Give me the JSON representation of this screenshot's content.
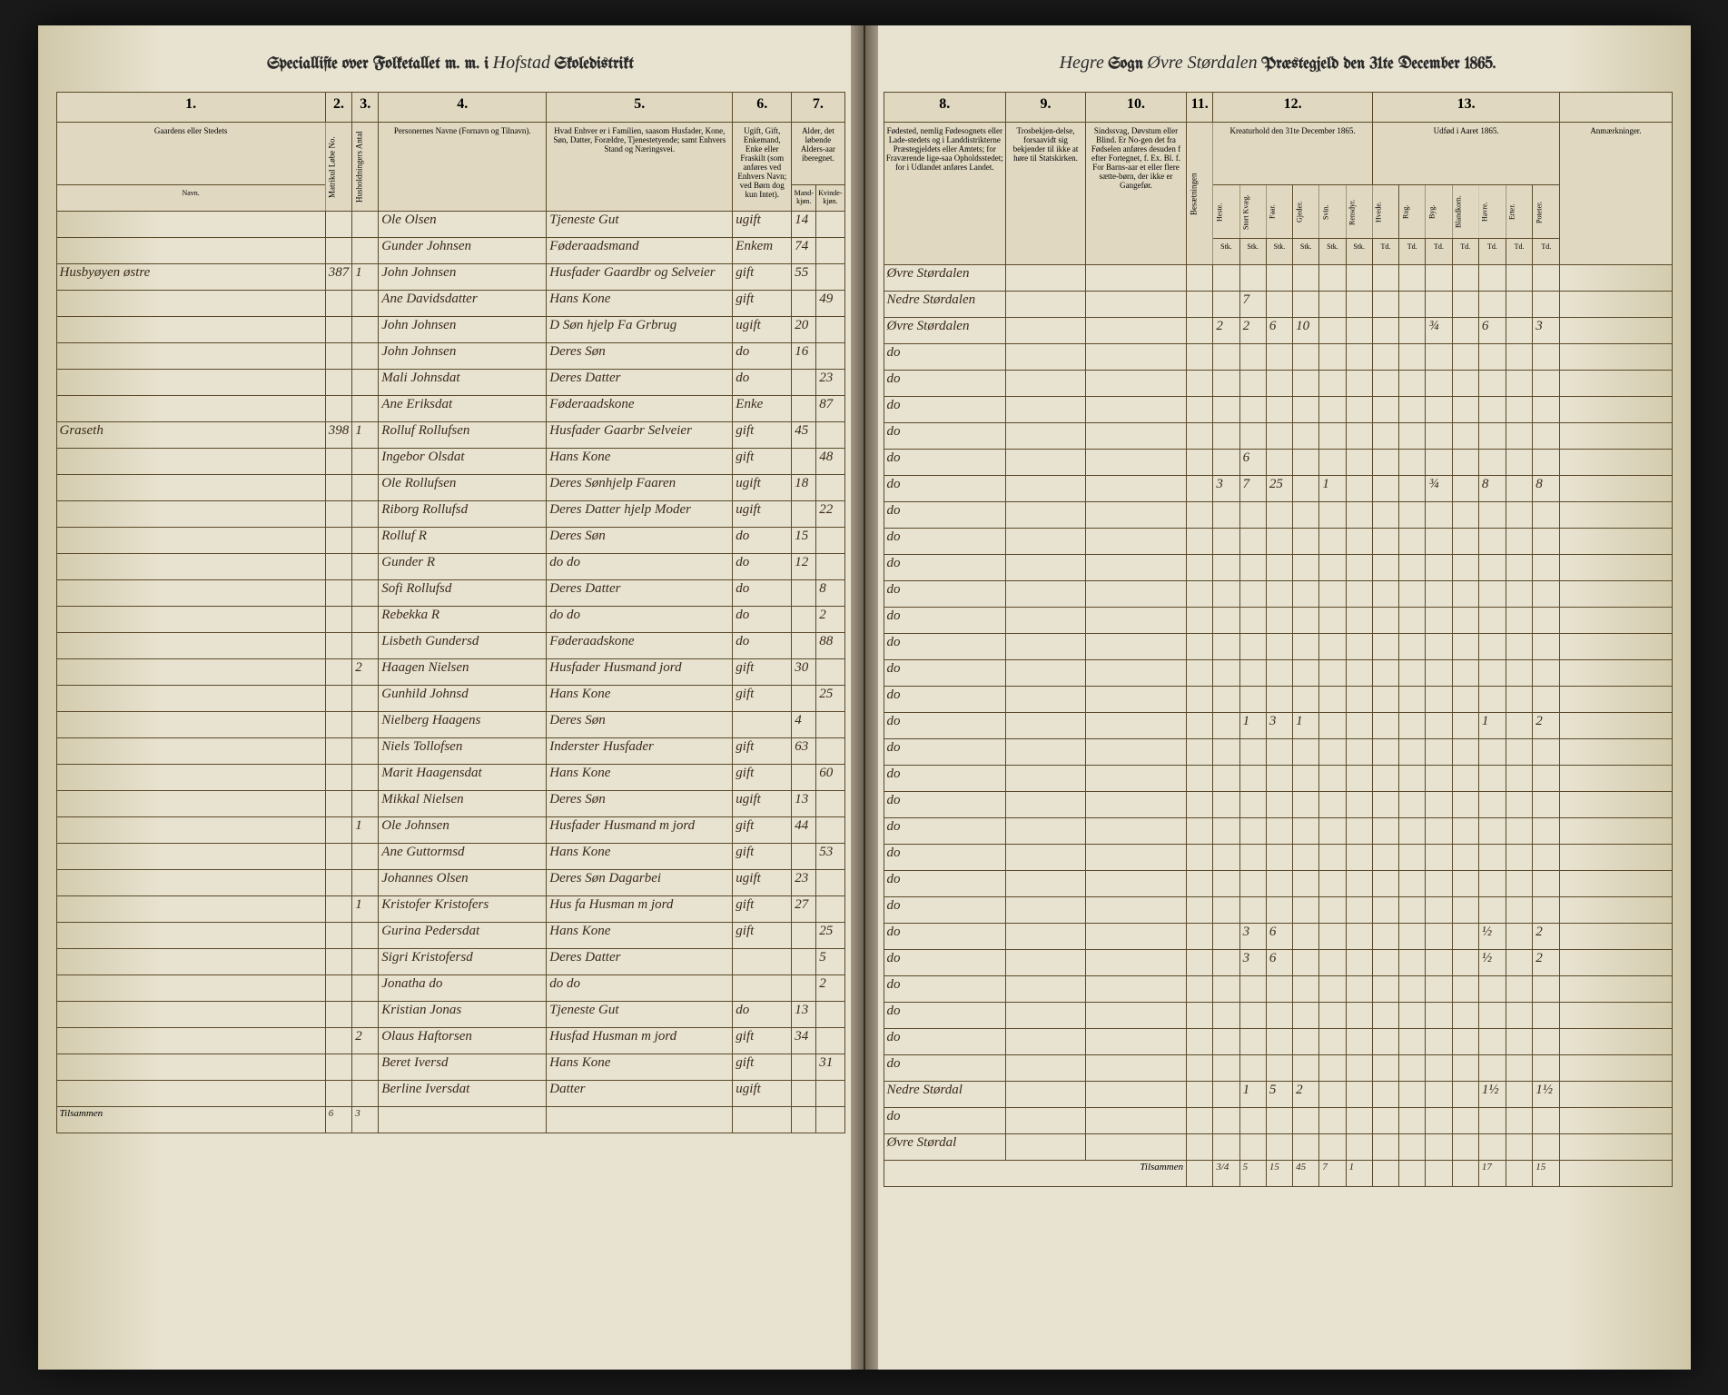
{
  "header": {
    "left_prefix": "Speciallifte over Folketallet m. m. i",
    "district_script": "Hofstad",
    "left_suffix": "Skoledistrikt",
    "right_sogn_script": "Hegre",
    "right_sogn_label": "Sogn",
    "right_prest_script": "Øvre Størdalen",
    "right_suffix": "Præstegjeld den 31te December 1865."
  },
  "columns_left": {
    "nums": [
      "1.",
      "2.",
      "3.",
      "4.",
      "5.",
      "6.",
      "7."
    ],
    "c1": "Gaardens eller Stedets",
    "c1_sub": "Navn.",
    "c2": "Matrikul Løbe No.",
    "c3": "Husholdningers Antal",
    "c4": "Personernes Navne (Fornavn og Tilnavn).",
    "c5": "Hvad Enhver er i Familien, saasom Husfader, Kone, Søn, Datter, Forældre, Tjenestetyende; samt Enhvers Stand og Næringsvei.",
    "c6": "Ugift, Gift, Enkemand, Enke eller Fraskilt (som anføres ved Enhvers Navn; ved Børn dog kun Intet).",
    "c7_a": "Alder, det løbende Alders-aar iberegnet.",
    "c7_m": "Mand-kjøn.",
    "c7_k": "Kvinde-kjøn."
  },
  "columns_right": {
    "nums": [
      "8.",
      "9.",
      "10.",
      "11.",
      "12.",
      "13."
    ],
    "c8": "Fødested, nemlig Fødesognets eller Lade-stedets og i Landdistrikterne Præstegjeldets eller Amtets; for Fraværende lige-saa Opholdsstedet; for i Udlandet anføres Landet.",
    "c9": "Trosbekjen-delse, forsaavidt sig bekjender til ikke at høre til Statskirken.",
    "c10": "Sindssvag, Døvstum eller Blind. Er No-gen det fra Fødselen anføres desuden f efter Fortegnet, f. Ex. Bl. f. For Barns-aar et eller flere sætte-børn, der ikke er Gangefør.",
    "c11_a": "Besætningen",
    "c11_b": "Kreaturhold den 31te December 1865.",
    "c13": "Udfød i Aaret 1865.",
    "c14": "Anmærkninger.",
    "livestock": [
      "Heste.",
      "Stort Kvæg.",
      "Faar.",
      "Gjeder.",
      "Svin.",
      "Rensdyr."
    ],
    "crops": [
      "Hvede.",
      "Rug.",
      "Byg.",
      "Blandkorn.",
      "Havre.",
      "Erter.",
      "Poteter."
    ],
    "units": [
      "Stk.",
      "Stk.",
      "Stk.",
      "Stk.",
      "Stk.",
      "Stk.",
      "Td.",
      "Td.",
      "Td.",
      "Td.",
      "Td.",
      "Td.",
      "Td."
    ]
  },
  "rows": [
    {
      "farm": "",
      "mn": "",
      "hh": "",
      "name": "Ole Olsen",
      "role": "Tjeneste Gut",
      "status": "ugift",
      "age_m": "14",
      "age_k": "",
      "birthplace": "Øvre Størdalen",
      "livestock": [
        "",
        "",
        "",
        "",
        "",
        ""
      ],
      "crops": [
        "",
        "",
        "",
        "",
        "",
        "",
        ""
      ]
    },
    {
      "farm": "",
      "mn": "",
      "hh": "",
      "name": "Gunder Johnsen",
      "role": "Føderaadsmand",
      "status": "Enkem",
      "age_m": "74",
      "age_k": "",
      "birthplace": "Nedre Størdalen",
      "livestock": [
        "",
        "7",
        "",
        "",
        "",
        ""
      ],
      "crops": [
        "",
        "",
        "",
        "",
        "",
        "",
        ""
      ]
    },
    {
      "farm": "Husbyøyen østre",
      "mn": "387",
      "hh": "1",
      "name": "John Johnsen",
      "role": "Husfader Gaardbr og Selveier",
      "status": "gift",
      "age_m": "55",
      "age_k": "",
      "birthplace": "Øvre Størdalen",
      "livestock": [
        "2",
        "2",
        "6",
        "10",
        "",
        ""
      ],
      "crops": [
        "",
        "",
        "¾",
        "",
        "6",
        "",
        "3"
      ]
    },
    {
      "farm": "",
      "mn": "",
      "hh": "",
      "name": "Ane Davidsdatter",
      "role": "Hans Kone",
      "status": "gift",
      "age_m": "",
      "age_k": "49",
      "birthplace": "do",
      "livestock": [
        "",
        "",
        "",
        "",
        "",
        ""
      ],
      "crops": [
        "",
        "",
        "",
        "",
        "",
        "",
        ""
      ]
    },
    {
      "farm": "",
      "mn": "",
      "hh": "",
      "name": "John Johnsen",
      "role": "D Søn hjelp Fa Grbrug",
      "status": "ugift",
      "age_m": "20",
      "age_k": "",
      "birthplace": "do",
      "livestock": [
        "",
        "",
        "",
        "",
        "",
        ""
      ],
      "crops": [
        "",
        "",
        "",
        "",
        "",
        "",
        ""
      ]
    },
    {
      "farm": "",
      "mn": "",
      "hh": "",
      "name": "John Johnsen",
      "role": "Deres Søn",
      "status": "do",
      "age_m": "16",
      "age_k": "",
      "birthplace": "do",
      "livestock": [
        "",
        "",
        "",
        "",
        "",
        ""
      ],
      "crops": [
        "",
        "",
        "",
        "",
        "",
        "",
        ""
      ]
    },
    {
      "farm": "",
      "mn": "",
      "hh": "",
      "name": "Mali Johnsdat",
      "role": "Deres Datter",
      "status": "do",
      "age_m": "",
      "age_k": "23",
      "birthplace": "do",
      "livestock": [
        "",
        "",
        "",
        "",
        "",
        ""
      ],
      "crops": [
        "",
        "",
        "",
        "",
        "",
        "",
        ""
      ]
    },
    {
      "farm": "",
      "mn": "",
      "hh": "",
      "name": "Ane Eriksdat",
      "role": "Føderaadskone",
      "status": "Enke",
      "age_m": "",
      "age_k": "87",
      "birthplace": "do",
      "livestock": [
        "",
        "6",
        "",
        "",
        "",
        ""
      ],
      "crops": [
        "",
        "",
        "",
        "",
        "",
        "",
        ""
      ]
    },
    {
      "farm": "Graseth",
      "mn": "398",
      "hh": "1",
      "name": "Rolluf Rollufsen",
      "role": "Husfader Gaarbr Selveier",
      "status": "gift",
      "age_m": "45",
      "age_k": "",
      "birthplace": "do",
      "livestock": [
        "3",
        "7",
        "25",
        "",
        "1",
        ""
      ],
      "crops": [
        "",
        "",
        "¾",
        "",
        "8",
        "",
        "8"
      ]
    },
    {
      "farm": "",
      "mn": "",
      "hh": "",
      "name": "Ingebor Olsdat",
      "role": "Hans Kone",
      "status": "gift",
      "age_m": "",
      "age_k": "48",
      "birthplace": "do",
      "livestock": [
        "",
        "",
        "",
        "",
        "",
        ""
      ],
      "crops": [
        "",
        "",
        "",
        "",
        "",
        "",
        ""
      ]
    },
    {
      "farm": "",
      "mn": "",
      "hh": "",
      "name": "Ole Rollufsen",
      "role": "Deres Sønhjelp Faaren",
      "status": "ugift",
      "age_m": "18",
      "age_k": "",
      "birthplace": "do",
      "livestock": [
        "",
        "",
        "",
        "",
        "",
        ""
      ],
      "crops": [
        "",
        "",
        "",
        "",
        "",
        "",
        ""
      ]
    },
    {
      "farm": "",
      "mn": "",
      "hh": "",
      "name": "Riborg Rollufsd",
      "role": "Deres Datter hjelp Moder",
      "status": "ugift",
      "age_m": "",
      "age_k": "22",
      "birthplace": "do",
      "livestock": [
        "",
        "",
        "",
        "",
        "",
        ""
      ],
      "crops": [
        "",
        "",
        "",
        "",
        "",
        "",
        ""
      ]
    },
    {
      "farm": "",
      "mn": "",
      "hh": "",
      "name": "Rolluf R",
      "role": "Deres Søn",
      "status": "do",
      "age_m": "15",
      "age_k": "",
      "birthplace": "do",
      "livestock": [
        "",
        "",
        "",
        "",
        "",
        ""
      ],
      "crops": [
        "",
        "",
        "",
        "",
        "",
        "",
        ""
      ]
    },
    {
      "farm": "",
      "mn": "",
      "hh": "",
      "name": "Gunder R",
      "role": "do do",
      "status": "do",
      "age_m": "12",
      "age_k": "",
      "birthplace": "do",
      "livestock": [
        "",
        "",
        "",
        "",
        "",
        ""
      ],
      "crops": [
        "",
        "",
        "",
        "",
        "",
        "",
        ""
      ]
    },
    {
      "farm": "",
      "mn": "",
      "hh": "",
      "name": "Sofi Rollufsd",
      "role": "Deres Datter",
      "status": "do",
      "age_m": "",
      "age_k": "8",
      "birthplace": "do",
      "livestock": [
        "",
        "",
        "",
        "",
        "",
        ""
      ],
      "crops": [
        "",
        "",
        "",
        "",
        "",
        "",
        ""
      ]
    },
    {
      "farm": "",
      "mn": "",
      "hh": "",
      "name": "Rebekka R",
      "role": "do do",
      "status": "do",
      "age_m": "",
      "age_k": "2",
      "birthplace": "do",
      "livestock": [
        "",
        "",
        "",
        "",
        "",
        ""
      ],
      "crops": [
        "",
        "",
        "",
        "",
        "",
        "",
        ""
      ]
    },
    {
      "farm": "",
      "mn": "",
      "hh": "",
      "name": "Lisbeth Gundersd",
      "role": "Føderaadskone",
      "status": "do",
      "age_m": "",
      "age_k": "88",
      "birthplace": "do",
      "livestock": [
        "",
        "",
        "",
        "",
        "",
        ""
      ],
      "crops": [
        "",
        "",
        "",
        "",
        "",
        "",
        ""
      ]
    },
    {
      "farm": "",
      "mn": "",
      "hh": "2",
      "name": "Haagen Nielsen",
      "role": "Husfader Husmand jord",
      "status": "gift",
      "age_m": "30",
      "age_k": "",
      "birthplace": "do",
      "livestock": [
        "",
        "1",
        "3",
        "1",
        "",
        ""
      ],
      "crops": [
        "",
        "",
        "",
        "",
        "1",
        "",
        "2"
      ]
    },
    {
      "farm": "",
      "mn": "",
      "hh": "",
      "name": "Gunhild Johnsd",
      "role": "Hans Kone",
      "status": "gift",
      "age_m": "",
      "age_k": "25",
      "birthplace": "do",
      "livestock": [
        "",
        "",
        "",
        "",
        "",
        ""
      ],
      "crops": [
        "",
        "",
        "",
        "",
        "",
        "",
        ""
      ]
    },
    {
      "farm": "",
      "mn": "",
      "hh": "",
      "name": "Nielberg Haagens",
      "role": "Deres Søn",
      "status": "",
      "age_m": "4",
      "age_k": "",
      "birthplace": "do",
      "livestock": [
        "",
        "",
        "",
        "",
        "",
        ""
      ],
      "crops": [
        "",
        "",
        "",
        "",
        "",
        "",
        ""
      ]
    },
    {
      "farm": "",
      "mn": "",
      "hh": "",
      "name": "Niels Tollofsen",
      "role": "Inderster Husfader",
      "status": "gift",
      "age_m": "63",
      "age_k": "",
      "birthplace": "do",
      "livestock": [
        "",
        "",
        "",
        "",
        "",
        ""
      ],
      "crops": [
        "",
        "",
        "",
        "",
        "",
        "",
        ""
      ]
    },
    {
      "farm": "",
      "mn": "",
      "hh": "",
      "name": "Marit Haagensdat",
      "role": "Hans Kone",
      "status": "gift",
      "age_m": "",
      "age_k": "60",
      "birthplace": "do",
      "livestock": [
        "",
        "",
        "",
        "",
        "",
        ""
      ],
      "crops": [
        "",
        "",
        "",
        "",
        "",
        "",
        ""
      ]
    },
    {
      "farm": "",
      "mn": "",
      "hh": "",
      "name": "Mikkal Nielsen",
      "role": "Deres Søn",
      "status": "ugift",
      "age_m": "13",
      "age_k": "",
      "birthplace": "do",
      "livestock": [
        "",
        "",
        "",
        "",
        "",
        ""
      ],
      "crops": [
        "",
        "",
        "",
        "",
        "",
        "",
        ""
      ]
    },
    {
      "farm": "",
      "mn": "",
      "hh": "1",
      "name": "Ole Johnsen",
      "role": "Husfader Husmand m jord",
      "status": "gift",
      "age_m": "44",
      "age_k": "",
      "birthplace": "do",
      "livestock": [
        "",
        "",
        "",
        "",
        "",
        ""
      ],
      "crops": [
        "",
        "",
        "",
        "",
        "",
        "",
        ""
      ]
    },
    {
      "farm": "",
      "mn": "",
      "hh": "",
      "name": "Ane Guttormsd",
      "role": "Hans Kone",
      "status": "gift",
      "age_m": "",
      "age_k": "53",
      "birthplace": "do",
      "livestock": [
        "",
        "",
        "",
        "",
        "",
        ""
      ],
      "crops": [
        "",
        "",
        "",
        "",
        "",
        "",
        ""
      ]
    },
    {
      "farm": "",
      "mn": "",
      "hh": "",
      "name": "Johannes Olsen",
      "role": "Deres Søn Dagarbei",
      "status": "ugift",
      "age_m": "23",
      "age_k": "",
      "birthplace": "do",
      "livestock": [
        "",
        "3",
        "6",
        "",
        "",
        ""
      ],
      "crops": [
        "",
        "",
        "",
        "",
        "½",
        "",
        "2"
      ]
    },
    {
      "farm": "",
      "mn": "",
      "hh": "1",
      "name": "Kristofer Kristofers",
      "role": "Hus fa Husman m jord",
      "status": "gift",
      "age_m": "27",
      "age_k": "",
      "birthplace": "do",
      "livestock": [
        "",
        "3",
        "6",
        "",
        "",
        ""
      ],
      "crops": [
        "",
        "",
        "",
        "",
        "½",
        "",
        "2"
      ]
    },
    {
      "farm": "",
      "mn": "",
      "hh": "",
      "name": "Gurina Pedersdat",
      "role": "Hans Kone",
      "status": "gift",
      "age_m": "",
      "age_k": "25",
      "birthplace": "do",
      "livestock": [
        "",
        "",
        "",
        "",
        "",
        ""
      ],
      "crops": [
        "",
        "",
        "",
        "",
        "",
        "",
        ""
      ]
    },
    {
      "farm": "",
      "mn": "",
      "hh": "",
      "name": "Sigri Kristofersd",
      "role": "Deres Datter",
      "status": "",
      "age_m": "",
      "age_k": "5",
      "birthplace": "do",
      "livestock": [
        "",
        "",
        "",
        "",
        "",
        ""
      ],
      "crops": [
        "",
        "",
        "",
        "",
        "",
        "",
        ""
      ]
    },
    {
      "farm": "",
      "mn": "",
      "hh": "",
      "name": "Jonatha do",
      "role": "do do",
      "status": "",
      "age_m": "",
      "age_k": "2",
      "birthplace": "do",
      "livestock": [
        "",
        "",
        "",
        "",
        "",
        ""
      ],
      "crops": [
        "",
        "",
        "",
        "",
        "",
        "",
        ""
      ]
    },
    {
      "farm": "",
      "mn": "",
      "hh": "",
      "name": "Kristian Jonas",
      "role": "Tjeneste Gut",
      "status": "do",
      "age_m": "13",
      "age_k": "",
      "birthplace": "do",
      "livestock": [
        "",
        "",
        "",
        "",
        "",
        ""
      ],
      "crops": [
        "",
        "",
        "",
        "",
        "",
        "",
        ""
      ]
    },
    {
      "farm": "",
      "mn": "",
      "hh": "2",
      "name": "Olaus Haftorsen",
      "role": "Husfad Husman m jord",
      "status": "gift",
      "age_m": "34",
      "age_k": "",
      "birthplace": "Nedre Størdal",
      "livestock": [
        "",
        "1",
        "5",
        "2",
        "",
        ""
      ],
      "crops": [
        "",
        "",
        "",
        "",
        "1½",
        "",
        "1½"
      ]
    },
    {
      "farm": "",
      "mn": "",
      "hh": "",
      "name": "Beret Iversd",
      "role": "Hans Kone",
      "status": "gift",
      "age_m": "",
      "age_k": "31",
      "birthplace": "do",
      "livestock": [
        "",
        "",
        "",
        "",
        "",
        ""
      ],
      "crops": [
        "",
        "",
        "",
        "",
        "",
        "",
        ""
      ]
    },
    {
      "farm": "",
      "mn": "",
      "hh": "",
      "name": "Berline Iversdat",
      "role": "Datter",
      "status": "ugift",
      "age_m": "",
      "age_k": "",
      "birthplace": "Øvre Størdal",
      "livestock": [
        "",
        "",
        "",
        "",
        "",
        ""
      ],
      "crops": [
        "",
        "",
        "",
        "",
        "",
        "",
        ""
      ]
    }
  ],
  "footer": {
    "left_label": "Tilsammen",
    "left_counts": [
      "6",
      "3"
    ],
    "right_label": "Tilsammen",
    "right_totals": [
      "3/4",
      "5",
      "15",
      "45",
      "7",
      "1",
      "",
      "",
      "",
      "",
      "17",
      "",
      "15"
    ]
  }
}
